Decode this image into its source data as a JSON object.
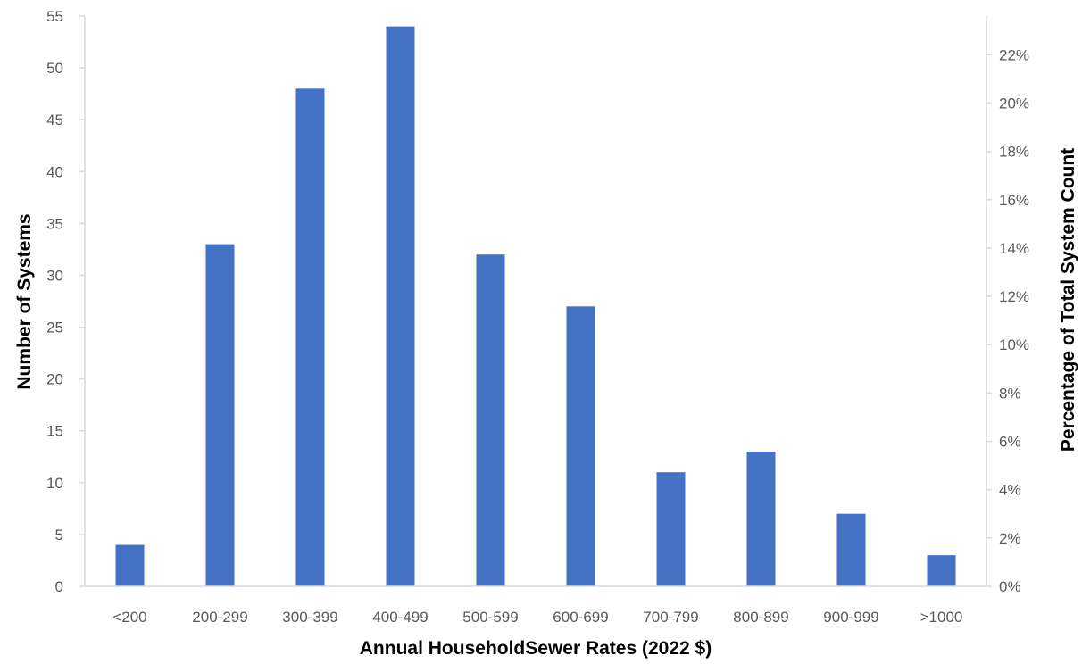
{
  "chart_data": {
    "type": "bar",
    "title": "",
    "xlabel": "Annual HouseholdSewer Rates (2022 $)",
    "ylabel": "Number of Systems",
    "y2label": "Percentage of Total System Count",
    "categories": [
      "<200",
      "200-299",
      "300-399",
      "400-499",
      "500-599",
      "600-699",
      "700-799",
      "800-899",
      "900-999",
      ">1000"
    ],
    "values": [
      4,
      33,
      48,
      54,
      32,
      27,
      11,
      13,
      7,
      3
    ],
    "ylim": [
      0,
      55
    ],
    "yticks": [
      "0",
      "5",
      "10",
      "15",
      "20",
      "25",
      "30",
      "35",
      "40",
      "45",
      "50",
      "55"
    ],
    "y2lim": [
      0,
      0.236
    ],
    "y2ticks": [
      "0%",
      "2%",
      "4%",
      "6%",
      "8%",
      "10%",
      "12%",
      "14%",
      "16%",
      "18%",
      "20%",
      "22%"
    ],
    "grid": false,
    "bar_color": "#4472C4",
    "axis_color": "#D9D9D9"
  }
}
